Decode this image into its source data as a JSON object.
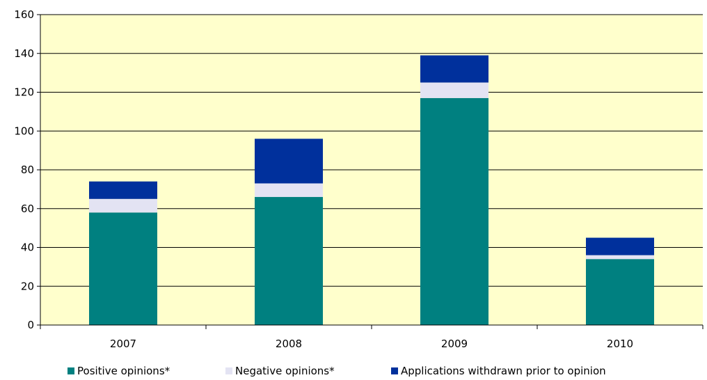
{
  "chart_data": {
    "type": "bar",
    "stacked": true,
    "categories": [
      "2007",
      "2008",
      "2009",
      "2010"
    ],
    "series": [
      {
        "name": "Positive opinions*",
        "values": [
          58,
          66,
          117,
          34
        ],
        "color": "#008080"
      },
      {
        "name": "Negative opinions*",
        "values": [
          7,
          7,
          8,
          2
        ],
        "color": "#E3E3F3"
      },
      {
        "name": "Applications withdrawn prior to opinion",
        "values": [
          9,
          23,
          14,
          9
        ],
        "color": "#00309C"
      }
    ],
    "ylim": [
      0,
      160
    ],
    "yticks": [
      "0",
      "20",
      "40",
      "60",
      "80",
      "100",
      "120",
      "140",
      "160"
    ],
    "grid": true,
    "plot_background": "#FFFFCC",
    "legend_position": "bottom"
  }
}
